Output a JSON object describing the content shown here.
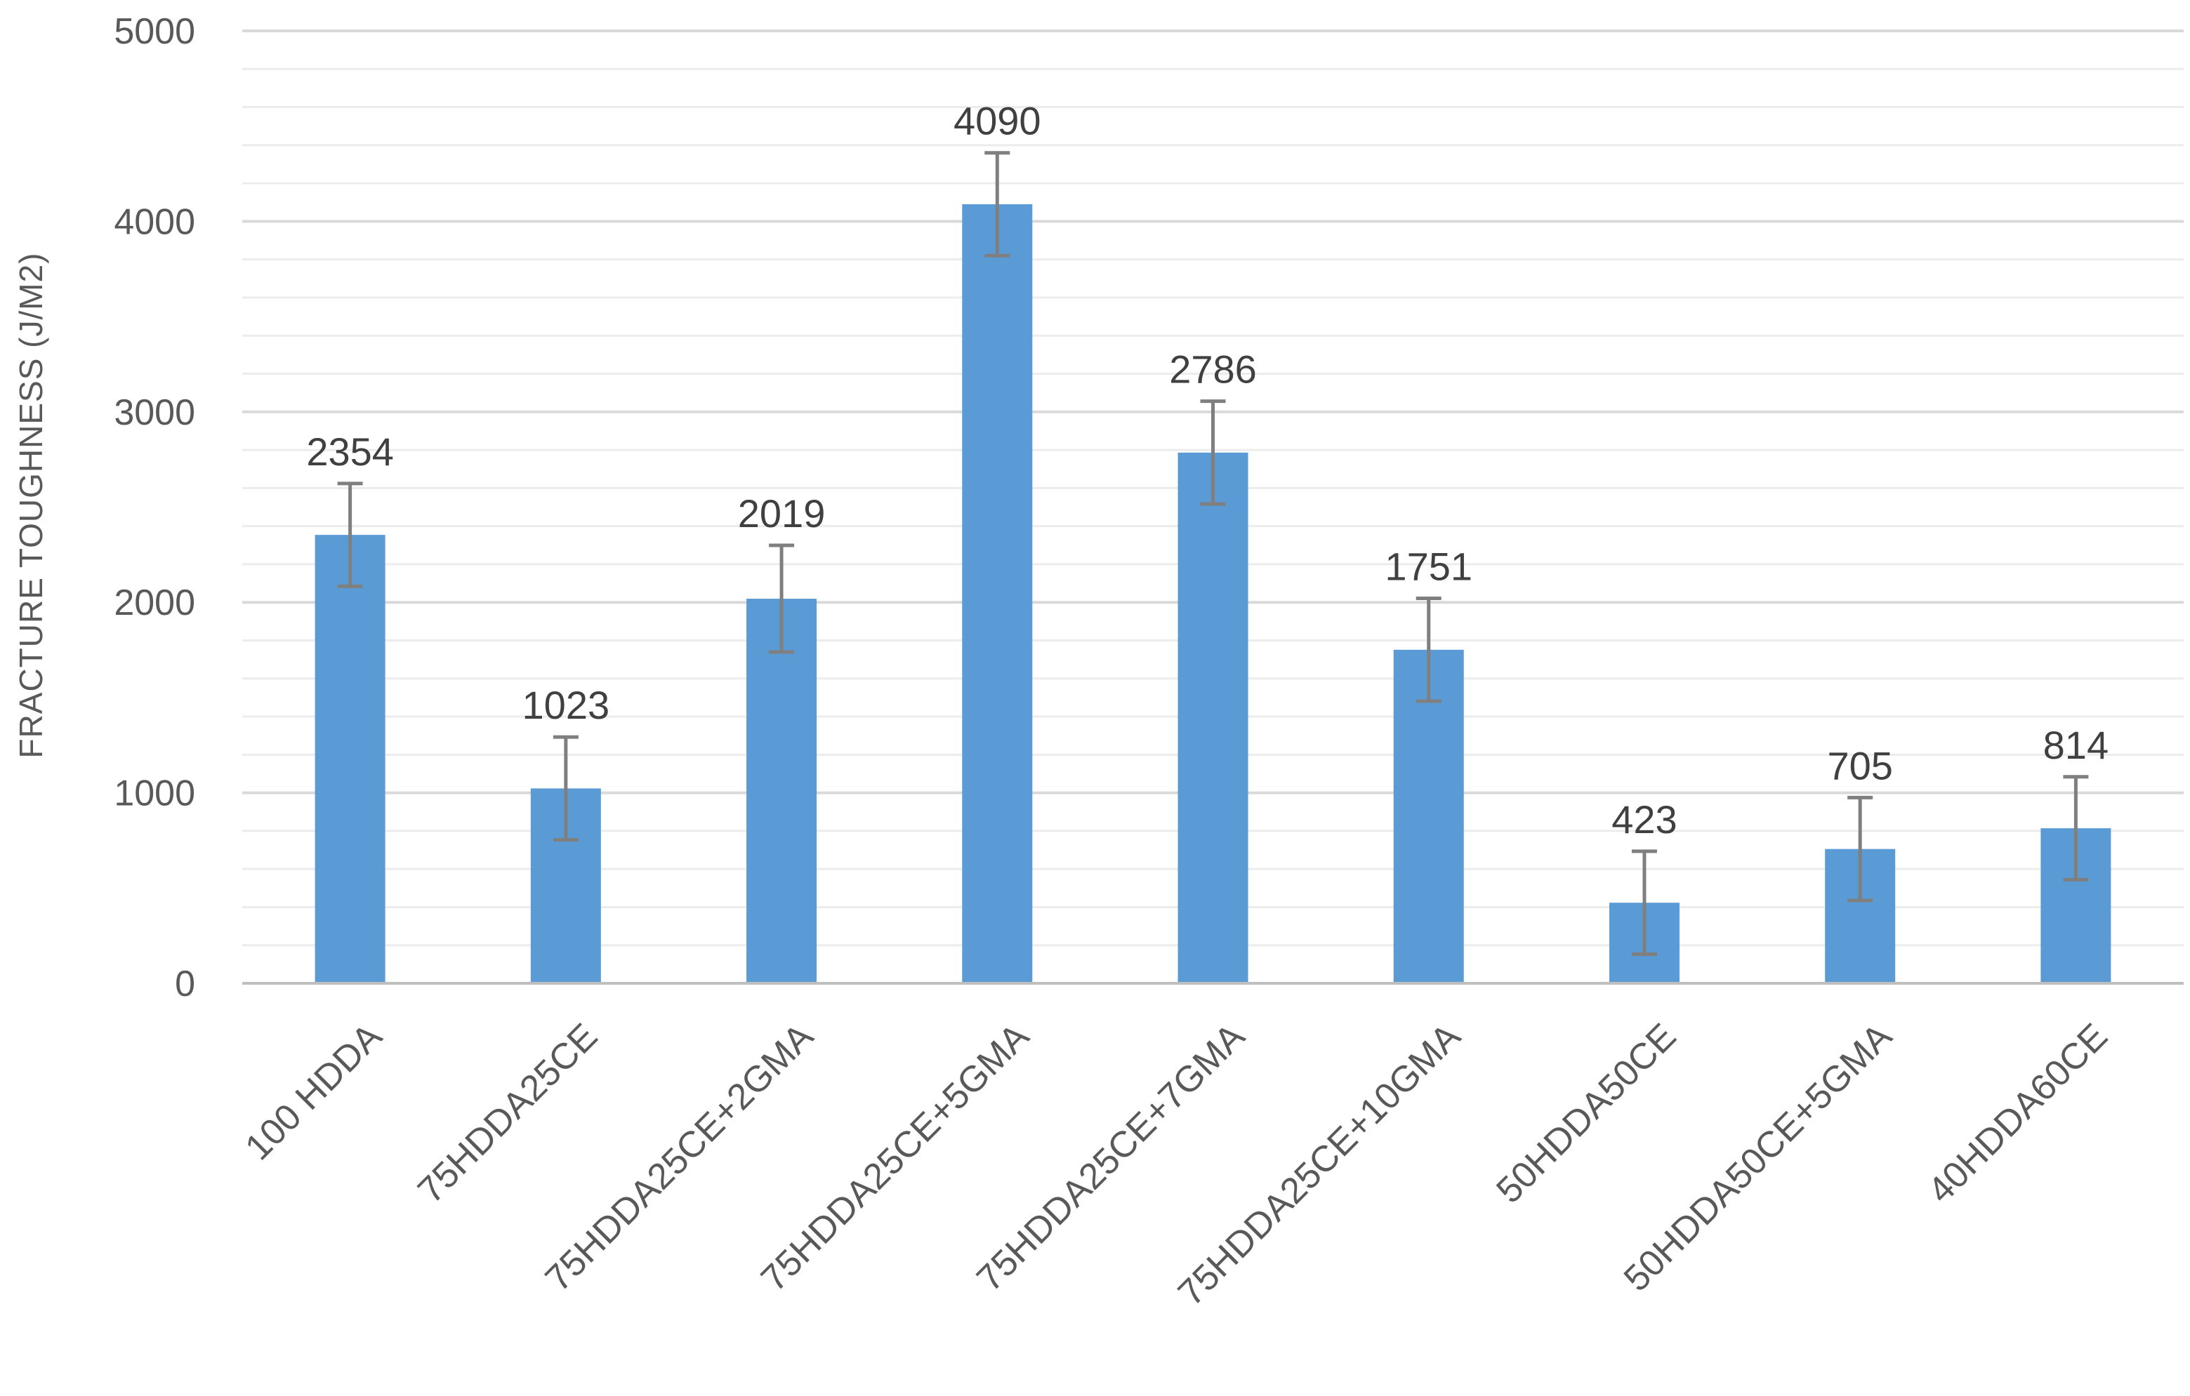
{
  "chart_data": {
    "type": "bar",
    "title": "",
    "xlabel": "",
    "ylabel": "FRACTURE TOUGHNESS (J/M2)",
    "ylim": [
      0,
      5000
    ],
    "yticks": [
      0,
      1000,
      2000,
      3000,
      4000,
      5000
    ],
    "grid": true,
    "categories": [
      "100 HDDA",
      "75HDDA25CE",
      "75HDDA25CE+2GMA",
      "75HDDA25CE+5GMA",
      "75HDDA25CE+7GMA",
      "75HDDA25CE+10GMA",
      "50HDDA50CE",
      "50HDDA50CE+5GMA",
      "40HDDA60CE"
    ],
    "values": [
      2354,
      1023,
      2019,
      4090,
      2786,
      1751,
      423,
      705,
      814
    ],
    "value_labels": [
      "2354",
      "1023",
      "2019",
      "4090",
      "2786",
      "1751",
      "423",
      "705",
      "814"
    ],
    "error": [
      270,
      270,
      280,
      270,
      270,
      270,
      270,
      270,
      270
    ],
    "colors": {
      "bar": "#5b9bd5",
      "error_bar": "#7f7f7f",
      "grid_major": "#d9d9d9",
      "grid_minor": "#ececec",
      "axis": "#bfbfbf"
    }
  }
}
